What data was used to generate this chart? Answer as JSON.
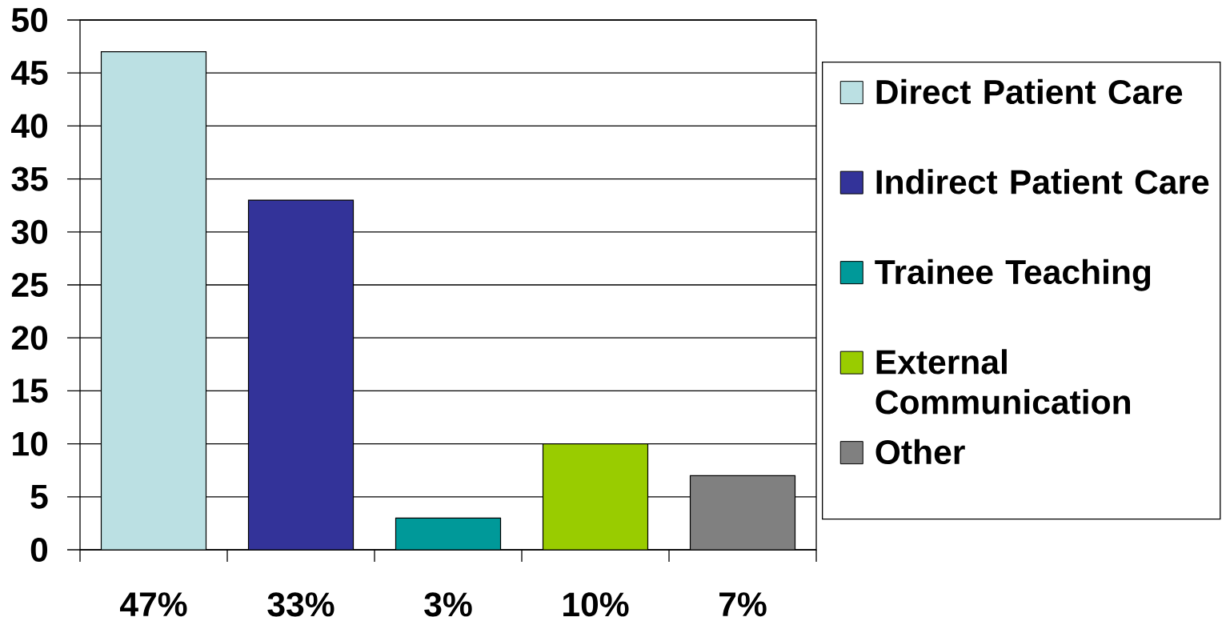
{
  "chart_data": {
    "type": "bar",
    "categories": [
      "47%",
      "33%",
      "3%",
      "10%",
      "7%"
    ],
    "series": [
      {
        "name": "Direct Patient Care",
        "color": "#bbe0e3",
        "values": [
          47,
          null,
          null,
          null,
          null
        ]
      },
      {
        "name": "Indirect Patient Care",
        "color": "#333399",
        "values": [
          null,
          33,
          null,
          null,
          null
        ]
      },
      {
        "name": "Trainee Teaching",
        "color": "#009999",
        "values": [
          null,
          null,
          3,
          null,
          null
        ]
      },
      {
        "name": "External Communication",
        "color": "#99cc00",
        "values": [
          null,
          null,
          null,
          10,
          null
        ]
      },
      {
        "name": "Other",
        "color": "#808080",
        "values": [
          null,
          null,
          null,
          null,
          7
        ]
      }
    ],
    "ylim": [
      0,
      50
    ],
    "yticks": [
      0,
      5,
      10,
      15,
      20,
      25,
      30,
      35,
      40,
      45,
      50
    ],
    "grid": "y",
    "legend": "right"
  }
}
